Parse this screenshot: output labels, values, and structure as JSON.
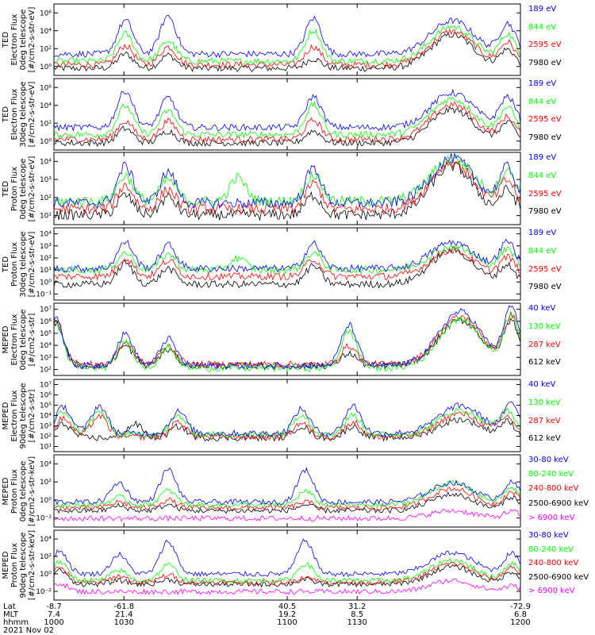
{
  "colors": {
    "black": "#000000",
    "red": "#ff0000",
    "green": "#00ff00",
    "blue": "#0000ff",
    "magenta": "#ff00ff"
  },
  "chart_data": [
    {
      "type": "line",
      "ylabel": "TED\nElectron Flux\n0deg telescope\n[#/cm2-s-str-eV]",
      "yticks": [
        "10⁰",
        "10²",
        "10⁴",
        "10⁶"
      ],
      "ylim_exp": [
        0,
        6
      ],
      "series": [
        {
          "name": "7980 eV",
          "color": "#000000",
          "level": 0.6,
          "peaks": [
            [
              158,
              1.2
            ],
            [
              212,
              1.1
            ],
            [
              395,
              0.8
            ],
            [
              570,
              2.8
            ],
            [
              640,
              1.5
            ]
          ]
        },
        {
          "name": "2595 eV",
          "color": "#ff0000",
          "level": 0.9,
          "peaks": [
            [
              158,
              1.6
            ],
            [
              212,
              1.5
            ],
            [
              395,
              1.5
            ],
            [
              570,
              2.8
            ],
            [
              640,
              1.8
            ]
          ]
        },
        {
          "name": "844 eV",
          "color": "#00ff00",
          "level": 1.2,
          "peaks": [
            [
              158,
              2.3
            ],
            [
              212,
              1.7
            ],
            [
              395,
              2.6
            ],
            [
              570,
              2.9
            ],
            [
              640,
              2.2
            ]
          ]
        },
        {
          "name": "189 eV",
          "color": "#0000ff",
          "level": 1.8,
          "peaks": [
            [
              158,
              2.8
            ],
            [
              212,
              3.2
            ],
            [
              395,
              3.0
            ],
            [
              570,
              2.8
            ],
            [
              640,
              2.5
            ]
          ]
        }
      ]
    },
    {
      "type": "line",
      "ylabel": "TED\nElectron Flux\n30deg telescope\n[#/cm2-s-str-eV]",
      "yticks": [
        "10⁰",
        "10²",
        "10⁴",
        "10⁶"
      ],
      "ylim_exp": [
        0,
        6
      ],
      "series": [
        {
          "name": "7980 eV",
          "color": "#000000",
          "level": 0.6,
          "peaks": [
            [
              158,
              1.2
            ],
            [
              212,
              1.0
            ],
            [
              395,
              1.0
            ],
            [
              570,
              2.8
            ],
            [
              640,
              1.6
            ]
          ]
        },
        {
          "name": "2595 eV",
          "color": "#ff0000",
          "level": 0.9,
          "peaks": [
            [
              158,
              1.5
            ],
            [
              212,
              1.5
            ],
            [
              395,
              1.6
            ],
            [
              570,
              2.9
            ],
            [
              640,
              1.8
            ]
          ]
        },
        {
          "name": "844 eV",
          "color": "#00ff00",
          "level": 1.3,
          "peaks": [
            [
              158,
              2.4
            ],
            [
              212,
              2.0
            ],
            [
              395,
              2.5
            ],
            [
              570,
              3.0
            ],
            [
              640,
              2.2
            ]
          ]
        },
        {
          "name": "189 eV",
          "color": "#0000ff",
          "level": 1.9,
          "peaks": [
            [
              158,
              3.1
            ],
            [
              212,
              2.5
            ],
            [
              395,
              2.6
            ],
            [
              570,
              2.9
            ],
            [
              640,
              2.5
            ]
          ]
        }
      ]
    },
    {
      "type": "line",
      "ylabel": "TED\nProton Flux\n0deg telescope\n[#/cm2-s-str-eV]",
      "yticks": [
        "10¹",
        "10²",
        "10³",
        "10⁴"
      ],
      "ylim_exp": [
        0.5,
        4.2
      ],
      "series": [
        {
          "name": "7980 eV",
          "color": "#000000",
          "level": 1.0,
          "peaks": [
            [
              158,
              1.0
            ],
            [
              212,
              0.9
            ],
            [
              395,
              1.0
            ],
            [
              570,
              2.5
            ],
            [
              640,
              1.2
            ]
          ]
        },
        {
          "name": "2595 eV",
          "color": "#ff0000",
          "level": 1.3,
          "peaks": [
            [
              158,
              1.2
            ],
            [
              212,
              1.0
            ],
            [
              395,
              1.3
            ],
            [
              570,
              2.4
            ],
            [
              640,
              1.4
            ]
          ]
        },
        {
          "name": "844 eV",
          "color": "#00ff00",
          "level": 1.7,
          "peaks": [
            [
              158,
              1.3
            ],
            [
              212,
              1.1
            ],
            [
              300,
              1.2
            ],
            [
              395,
              1.4
            ],
            [
              570,
              2.2
            ],
            [
              640,
              1.5
            ]
          ]
        },
        {
          "name": "189 eV",
          "color": "#0000ff",
          "level": 1.6,
          "peaks": [
            [
              158,
              1.9
            ],
            [
              212,
              1.6
            ],
            [
              395,
              1.8
            ],
            [
              570,
              2.3
            ],
            [
              640,
              1.8
            ]
          ]
        }
      ]
    },
    {
      "type": "line",
      "ylabel": "TED\nProton Flux\n30deg telescope\n[#/cm2-s-str-eV]",
      "yticks": [
        "10⁻¹",
        "10⁰",
        "10¹",
        "10²",
        "10³",
        "10⁴"
      ],
      "ylim_exp": [
        -1,
        4.5
      ],
      "series": [
        {
          "name": "7980 eV",
          "color": "#000000",
          "level": 0.2,
          "peaks": [
            [
              158,
              1.6
            ],
            [
              212,
              1.2
            ],
            [
              395,
              1.4
            ],
            [
              570,
              2.6
            ],
            [
              640,
              1.4
            ]
          ]
        },
        {
          "name": "2595 eV",
          "color": "#ff0000",
          "level": 0.8,
          "peaks": [
            [
              158,
              1.4
            ],
            [
              212,
              1.2
            ],
            [
              395,
              1.3
            ],
            [
              570,
              2.0
            ],
            [
              640,
              1.4
            ]
          ]
        },
        {
          "name": "844 eV",
          "color": "#00ff00",
          "level": 1.3,
          "peaks": [
            [
              158,
              1.3
            ],
            [
              212,
              1.2
            ],
            [
              300,
              0.9
            ],
            [
              395,
              1.3
            ],
            [
              570,
              1.8
            ],
            [
              640,
              1.5
            ]
          ]
        },
        {
          "name": "189 eV",
          "color": "#0000ff",
          "level": 1.4,
          "peaks": [
            [
              158,
              2.0
            ],
            [
              212,
              1.8
            ],
            [
              395,
              1.9
            ],
            [
              570,
              2.0
            ],
            [
              640,
              2.0
            ]
          ]
        }
      ]
    },
    {
      "type": "line",
      "ylabel": "MEPED\nElectron Flux\n0deg telescope\n[#/cm2-s-str]",
      "yticks": [
        "10²",
        "10³",
        "10⁴",
        "10⁵",
        "10⁶",
        "10⁷"
      ],
      "ylim_exp": [
        1.3,
        7.2
      ],
      "series": [
        {
          "name": "612 keV",
          "color": "#000000",
          "level": 2.1,
          "peaks": [
            [
              70,
              3.5
            ],
            [
              158,
              1.6
            ],
            [
              212,
              1.3
            ],
            [
              440,
              1.0
            ],
            [
              580,
              3.7
            ],
            [
              645,
              3.5
            ]
          ]
        },
        {
          "name": "287 keV",
          "color": "#ff0000",
          "level": 2.2,
          "peaks": [
            [
              70,
              3.5
            ],
            [
              158,
              1.8
            ],
            [
              212,
              1.5
            ],
            [
              440,
              1.5
            ],
            [
              580,
              3.9
            ],
            [
              645,
              3.8
            ]
          ]
        },
        {
          "name": "130 keV",
          "color": "#00ff00",
          "level": 1.9,
          "peaks": [
            [
              70,
              3.6
            ],
            [
              158,
              2.2
            ],
            [
              212,
              1.7
            ],
            [
              440,
              3.0
            ],
            [
              580,
              4.0
            ],
            [
              645,
              4.3
            ]
          ]
        },
        {
          "name": "40 keV",
          "color": "#0000ff",
          "level": 2.1,
          "peaks": [
            [
              70,
              3.8
            ],
            [
              158,
              2.6
            ],
            [
              212,
              2.2
            ],
            [
              440,
              3.3
            ],
            [
              580,
              4.4
            ],
            [
              645,
              4.6
            ]
          ]
        }
      ]
    },
    {
      "type": "line",
      "ylabel": "MEPED\nElectron Flux\n90deg telescope\n[#/cm2-s-str]",
      "yticks": [
        "10¹",
        "10²",
        "10³",
        "10⁴",
        "10⁵",
        "10⁶",
        "10⁷"
      ],
      "ylim_exp": [
        0.8,
        7.1
      ],
      "series": [
        {
          "name": "612 keV",
          "color": "#000000",
          "level": 2.0,
          "peaks": [
            [
              80,
              1.2
            ],
            [
              170,
              1.2
            ],
            [
              225,
              1.0
            ],
            [
              380,
              1.0
            ],
            [
              445,
              1.0
            ],
            [
              580,
              1.6
            ],
            [
              640,
              1.3
            ]
          ]
        },
        {
          "name": "287 keV",
          "color": "#ff0000",
          "level": 2.1,
          "peaks": [
            [
              80,
              1.6
            ],
            [
              125,
              1.8
            ],
            [
              225,
              1.3
            ],
            [
              380,
              1.2
            ],
            [
              445,
              1.3
            ],
            [
              580,
              2.0
            ],
            [
              640,
              1.6
            ]
          ]
        },
        {
          "name": "130 keV",
          "color": "#00ff00",
          "level": 2.3,
          "peaks": [
            [
              80,
              2.0
            ],
            [
              125,
              2.0
            ],
            [
              225,
              1.6
            ],
            [
              380,
              1.8
            ],
            [
              445,
              1.7
            ],
            [
              580,
              2.1
            ],
            [
              640,
              1.9
            ]
          ]
        },
        {
          "name": "40 keV",
          "color": "#0000ff",
          "level": 2.4,
          "peaks": [
            [
              80,
              2.3
            ],
            [
              125,
              2.4
            ],
            [
              225,
              1.9
            ],
            [
              380,
              2.1
            ],
            [
              445,
              2.4
            ],
            [
              580,
              2.4
            ],
            [
              645,
              2.5
            ]
          ]
        }
      ]
    },
    {
      "type": "line",
      "ylabel": "MEPED\nProton Flux\n0deg telescope\n[#/cm2-s-str-keV]",
      "yticks": [
        "10⁻²",
        "10⁰",
        "10²",
        "10⁴"
      ],
      "ylim_exp": [
        -2.5,
        5.0
      ],
      "series": [
        {
          "name": "> 6900 keV",
          "color": "#ff00ff",
          "level": -1.6,
          "peaks": [
            [
              570,
              0.8
            ],
            [
              645,
              0.7
            ]
          ]
        },
        {
          "name": "2500-6900 keV",
          "color": "#000000",
          "level": -0.8,
          "peaks": [
            [
              150,
              0.5
            ],
            [
              212,
              0.6
            ],
            [
              385,
              0.6
            ],
            [
              570,
              1.7
            ],
            [
              645,
              1.4
            ]
          ]
        },
        {
          "name": "240-800 keV",
          "color": "#ff0000",
          "level": -0.5,
          "peaks": [
            [
              150,
              0.6
            ],
            [
              212,
              0.8
            ],
            [
              385,
              0.6
            ],
            [
              570,
              2.0
            ],
            [
              645,
              1.6
            ]
          ]
        },
        {
          "name": "80-240 keV",
          "color": "#00ff00",
          "level": -0.2,
          "peaks": [
            [
              150,
              0.8
            ],
            [
              212,
              1.5
            ],
            [
              385,
              1.4
            ],
            [
              570,
              2.3
            ],
            [
              645,
              1.7
            ]
          ]
        },
        {
          "name": "30-80 keV",
          "color": "#0000ff",
          "level": 0.1,
          "peaks": [
            [
              150,
              2.0
            ],
            [
              212,
              3.4
            ],
            [
              385,
              3.3
            ],
            [
              570,
              2.0
            ],
            [
              645,
              2.0
            ]
          ]
        }
      ]
    },
    {
      "type": "line",
      "ylabel": "MEPED\nProton Flux\n90deg telescope\n[#/cm2-s-str-keV]",
      "yticks": [
        "10⁻²",
        "10⁰",
        "10²",
        "10⁴"
      ],
      "ylim_exp": [
        -2.5,
        5.0
      ],
      "series": [
        {
          "name": "> 6900 keV",
          "color": "#ff00ff",
          "level": -1.6,
          "peaks": [
            [
              75,
              0.9
            ],
            [
              570,
              1.2
            ],
            [
              645,
              0.6
            ]
          ]
        },
        {
          "name": "2500-6900 keV",
          "color": "#000000",
          "level": -0.8,
          "peaks": [
            [
              75,
              1.5
            ],
            [
              150,
              0.4
            ],
            [
              212,
              0.5
            ],
            [
              385,
              0.5
            ],
            [
              570,
              1.9
            ],
            [
              645,
              1.3
            ]
          ]
        },
        {
          "name": "240-800 keV",
          "color": "#ff0000",
          "level": -0.6,
          "peaks": [
            [
              75,
              1.6
            ],
            [
              150,
              0.7
            ],
            [
              212,
              0.8
            ],
            [
              385,
              0.6
            ],
            [
              570,
              2.0
            ],
            [
              645,
              1.6
            ]
          ]
        },
        {
          "name": "80-240 keV",
          "color": "#00ff00",
          "level": -0.4,
          "peaks": [
            [
              75,
              2.0
            ],
            [
              150,
              1.1
            ],
            [
              212,
              1.7
            ],
            [
              385,
              1.8
            ],
            [
              570,
              2.2
            ],
            [
              645,
              1.8
            ]
          ]
        },
        {
          "name": "30-80 keV",
          "color": "#0000ff",
          "level": 0.3,
          "peaks": [
            [
              75,
              2.5
            ],
            [
              150,
              2.1
            ],
            [
              212,
              3.5
            ],
            [
              385,
              3.6
            ],
            [
              570,
              2.3
            ],
            [
              645,
              2.2
            ]
          ]
        }
      ]
    }
  ],
  "xaxis": {
    "row_labels": [
      "Lat",
      "MLT",
      "hhmm",
      "2021 Nov 02"
    ],
    "ticks": [
      {
        "time": 1000,
        "lat": "-8.7",
        "mlt": "7.4",
        "hhmm": "1000"
      },
      {
        "time": 1030,
        "lat": "-61.8",
        "mlt": "21.4",
        "hhmm": "1030"
      },
      {
        "time": 1100,
        "lat": "40.5",
        "mlt": "19.2",
        "hhmm": "1100"
      },
      {
        "time": 1130,
        "lat": "31.2",
        "mlt": "8.5",
        "hhmm": "1130"
      },
      {
        "time": 1200,
        "lat": "-72.9",
        "mlt": "6.8",
        "hhmm": "1200"
      }
    ]
  }
}
